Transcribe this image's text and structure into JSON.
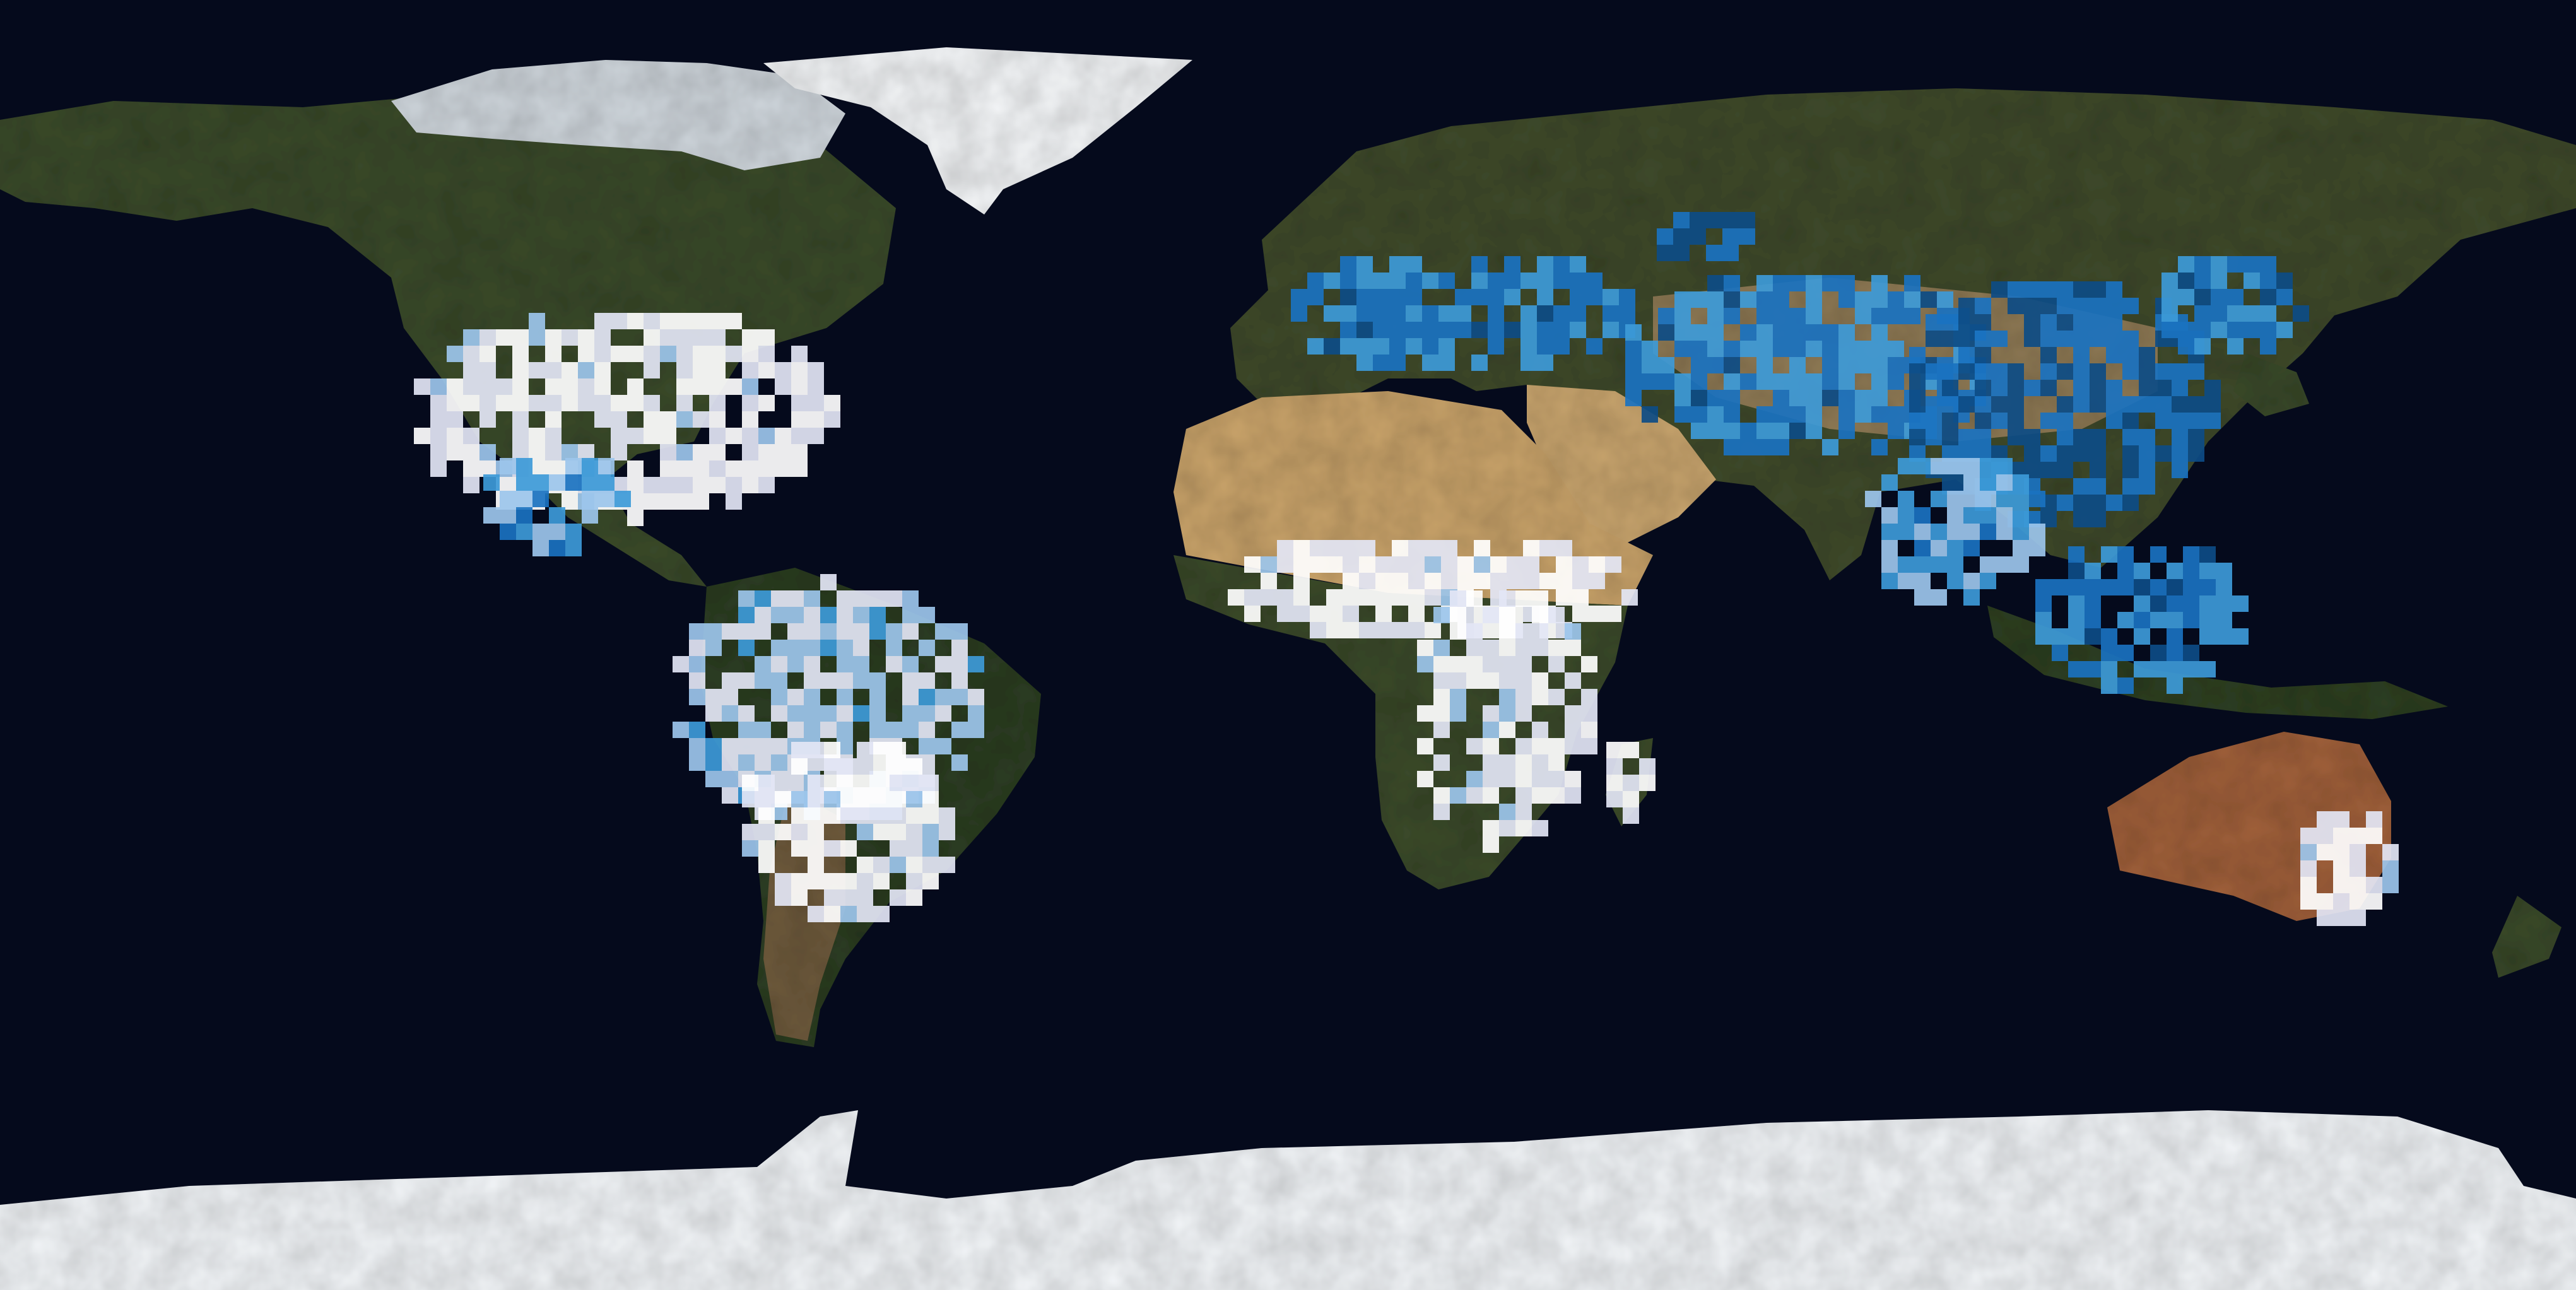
{
  "map": {
    "projection": "equirectangular",
    "extent": {
      "lon": [
        -180,
        180
      ],
      "lat": [
        -90,
        90
      ]
    },
    "ocean_color": "#050a1c",
    "ice_color": "#f2f5f8",
    "layer": {
      "kind": "gridded overlay on land",
      "palette": [
        "#ffffff",
        "#e3e6f5",
        "#9cc6ec",
        "#3d9ad8",
        "#1a72c0",
        "#0d4c86"
      ]
    }
  }
}
